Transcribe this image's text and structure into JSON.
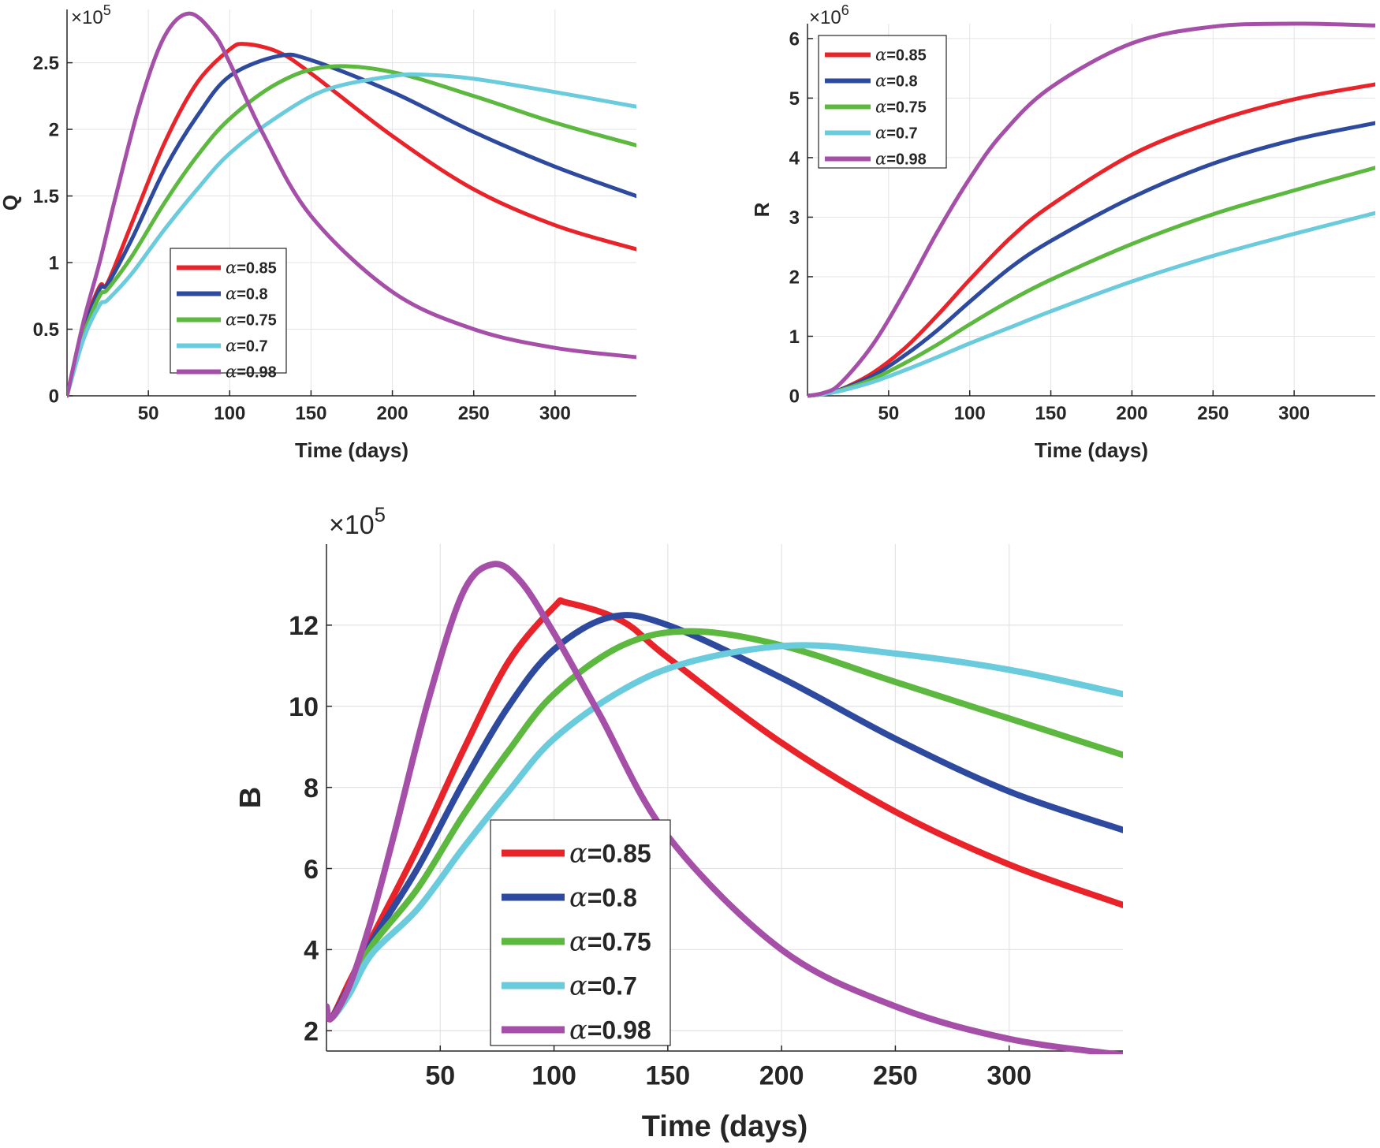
{
  "chart_data": [
    {
      "type": "line",
      "panel": "top-left",
      "title": "",
      "xlabel": "Time (days)",
      "ylabel": "Q",
      "y_exponent_label": "×10",
      "y_exponent_power": "5",
      "xlim": [
        0,
        350
      ],
      "ylim": [
        0,
        2.9
      ],
      "xticks": [
        50,
        100,
        150,
        200,
        250,
        300
      ],
      "xtick_labels": [
        "50",
        "100",
        "150",
        "200",
        "250",
        "300"
      ],
      "yticks": [
        0,
        0.5,
        1,
        1.5,
        2,
        2.5
      ],
      "ytick_labels": [
        "0",
        "0.5",
        "1",
        "1.5",
        "2",
        "2.5"
      ],
      "grid": true,
      "legend_position": "lower-left-center",
      "series": [
        {
          "name": "α=0.85",
          "alpha_value": "=0.85",
          "color": "#e8242a",
          "x": [
            0,
            10,
            20,
            25,
            40,
            60,
            80,
            100,
            110,
            130,
            150,
            200,
            250,
            300,
            350
          ],
          "y": [
            0,
            0.5,
            0.82,
            0.85,
            1.3,
            1.9,
            2.35,
            2.6,
            2.64,
            2.58,
            2.42,
            1.95,
            1.55,
            1.28,
            1.1
          ]
        },
        {
          "name": "α=0.8",
          "alpha_value": "=0.8",
          "color": "#2e4a9e",
          "x": [
            0,
            10,
            20,
            25,
            40,
            60,
            80,
            100,
            130,
            150,
            200,
            250,
            300,
            350
          ],
          "y": [
            0,
            0.48,
            0.8,
            0.84,
            1.18,
            1.7,
            2.1,
            2.4,
            2.55,
            2.52,
            2.28,
            1.98,
            1.72,
            1.5
          ]
        },
        {
          "name": "α=0.75",
          "alpha_value": "=0.75",
          "color": "#5cb83e",
          "x": [
            0,
            10,
            20,
            25,
            40,
            60,
            80,
            100,
            130,
            160,
            200,
            250,
            300,
            350
          ],
          "y": [
            0,
            0.45,
            0.75,
            0.8,
            1.05,
            1.45,
            1.8,
            2.08,
            2.35,
            2.47,
            2.43,
            2.25,
            2.05,
            1.88
          ]
        },
        {
          "name": "α=0.7",
          "alpha_value": "=0.7",
          "color": "#6acbdc",
          "x": [
            0,
            10,
            20,
            25,
            40,
            60,
            80,
            100,
            130,
            160,
            200,
            220,
            250,
            300,
            350
          ],
          "y": [
            0,
            0.42,
            0.68,
            0.72,
            0.92,
            1.25,
            1.55,
            1.82,
            2.1,
            2.3,
            2.4,
            2.41,
            2.38,
            2.28,
            2.17
          ]
        },
        {
          "name": "α=0.98",
          "alpha_value": "=0.98",
          "color": "#a64fa8",
          "x": [
            0,
            10,
            20,
            30,
            45,
            60,
            75,
            90,
            100,
            120,
            150,
            200,
            250,
            300,
            350
          ],
          "y": [
            0,
            0.55,
            1.0,
            1.5,
            2.2,
            2.7,
            2.87,
            2.72,
            2.5,
            1.98,
            1.35,
            0.78,
            0.5,
            0.36,
            0.29
          ]
        }
      ]
    },
    {
      "type": "line",
      "panel": "top-right",
      "title": "",
      "xlabel": "Time (days)",
      "ylabel": "R",
      "y_exponent_label": "×10",
      "y_exponent_power": "6",
      "xlim": [
        0,
        350
      ],
      "ylim": [
        0,
        6.25
      ],
      "xticks": [
        50,
        100,
        150,
        200,
        250,
        300
      ],
      "xtick_labels": [
        "50",
        "100",
        "150",
        "200",
        "250",
        "300"
      ],
      "yticks": [
        0,
        1,
        2,
        3,
        4,
        5,
        6
      ],
      "ytick_labels": [
        "0",
        "1",
        "2",
        "3",
        "4",
        "5",
        "6"
      ],
      "grid": true,
      "legend_position": "top-left",
      "series": [
        {
          "name": "α=0.85",
          "alpha_value": "=0.85",
          "color": "#e8242a",
          "x": [
            0,
            10,
            20,
            40,
            60,
            80,
            100,
            125,
            150,
            200,
            250,
            300,
            350
          ],
          "y": [
            0,
            0.03,
            0.1,
            0.38,
            0.8,
            1.35,
            1.95,
            2.65,
            3.2,
            4.05,
            4.6,
            4.98,
            5.23
          ]
        },
        {
          "name": "α=0.8",
          "alpha_value": "=0.8",
          "color": "#2e4a9e",
          "x": [
            0,
            10,
            20,
            40,
            60,
            80,
            100,
            125,
            150,
            200,
            250,
            300,
            350
          ],
          "y": [
            0,
            0.03,
            0.1,
            0.33,
            0.68,
            1.1,
            1.58,
            2.15,
            2.6,
            3.33,
            3.9,
            4.3,
            4.58
          ]
        },
        {
          "name": "α=0.75",
          "alpha_value": "=0.75",
          "color": "#5cb83e",
          "x": [
            0,
            10,
            20,
            40,
            60,
            80,
            100,
            125,
            150,
            200,
            250,
            300,
            350
          ],
          "y": [
            0,
            0.03,
            0.09,
            0.28,
            0.55,
            0.86,
            1.2,
            1.6,
            1.95,
            2.55,
            3.05,
            3.45,
            3.83
          ]
        },
        {
          "name": "α=0.7",
          "alpha_value": "=0.7",
          "color": "#6acbdc",
          "x": [
            0,
            10,
            20,
            40,
            60,
            80,
            100,
            125,
            150,
            200,
            250,
            300,
            350
          ],
          "y": [
            0,
            0.03,
            0.08,
            0.23,
            0.43,
            0.65,
            0.88,
            1.15,
            1.42,
            1.92,
            2.35,
            2.72,
            3.07
          ]
        },
        {
          "name": "α=0.98",
          "alpha_value": "=0.98",
          "color": "#a64fa8",
          "x": [
            0,
            10,
            20,
            40,
            60,
            80,
            100,
            120,
            150,
            200,
            250,
            300,
            350
          ],
          "y": [
            0,
            0.05,
            0.2,
            0.85,
            1.75,
            2.75,
            3.65,
            4.4,
            5.18,
            5.92,
            6.2,
            6.25,
            6.22
          ]
        }
      ]
    },
    {
      "type": "line",
      "panel": "bottom",
      "title": "",
      "xlabel": "Time (days)",
      "ylabel": "B",
      "y_exponent_label": "×10",
      "y_exponent_power": "5",
      "xlim": [
        0,
        350
      ],
      "ylim": [
        1.5,
        14
      ],
      "xticks": [
        50,
        100,
        150,
        200,
        250,
        300
      ],
      "xtick_labels": [
        "50",
        "100",
        "150",
        "200",
        "250",
        "300"
      ],
      "yticks": [
        2,
        4,
        6,
        8,
        10,
        12
      ],
      "ytick_labels": [
        "2",
        "4",
        "6",
        "8",
        "10",
        "12"
      ],
      "grid": true,
      "legend_position": "lower-center",
      "series": [
        {
          "name": "α=0.85",
          "alpha_value": "=0.85",
          "color": "#e8242a",
          "x": [
            0,
            2,
            10,
            20,
            40,
            60,
            80,
            100,
            106,
            130,
            150,
            200,
            250,
            300,
            350
          ],
          "y": [
            2.6,
            2.3,
            3.2,
            4.3,
            6.5,
            8.9,
            11.1,
            12.45,
            12.55,
            12.1,
            11.2,
            9.1,
            7.4,
            6.1,
            5.1
          ]
        },
        {
          "name": "α=0.8",
          "alpha_value": "=0.8",
          "color": "#2e4a9e",
          "x": [
            0,
            2,
            10,
            20,
            40,
            60,
            80,
            100,
            125,
            150,
            200,
            250,
            300,
            350
          ],
          "y": [
            2.6,
            2.3,
            3.1,
            4.2,
            6.0,
            8.1,
            10.0,
            11.4,
            12.2,
            12.0,
            10.7,
            9.2,
            7.9,
            6.95
          ]
        },
        {
          "name": "α=0.75",
          "alpha_value": "=0.75",
          "color": "#5cb83e",
          "x": [
            0,
            2,
            10,
            20,
            40,
            60,
            80,
            100,
            130,
            160,
            200,
            250,
            300,
            350
          ],
          "y": [
            2.6,
            2.3,
            3.0,
            4.1,
            5.5,
            7.3,
            8.9,
            10.3,
            11.5,
            11.85,
            11.5,
            10.6,
            9.7,
            8.8
          ]
        },
        {
          "name": "α=0.7",
          "alpha_value": "=0.7",
          "color": "#6acbdc",
          "x": [
            0,
            2,
            10,
            20,
            40,
            60,
            80,
            100,
            130,
            160,
            205,
            250,
            300,
            350
          ],
          "y": [
            2.6,
            2.3,
            2.9,
            3.9,
            5.0,
            6.5,
            7.9,
            9.2,
            10.4,
            11.1,
            11.5,
            11.3,
            10.9,
            10.3
          ]
        },
        {
          "name": "α=0.98",
          "alpha_value": "=0.98",
          "color": "#a64fa8",
          "x": [
            0,
            2,
            10,
            20,
            30,
            45,
            60,
            73,
            85,
            100,
            120,
            150,
            200,
            250,
            300,
            350
          ],
          "y": [
            2.6,
            2.3,
            3.1,
            4.8,
            6.9,
            10.2,
            12.8,
            13.5,
            13.1,
            11.8,
            9.8,
            6.8,
            4.0,
            2.6,
            1.8,
            1.4
          ]
        }
      ]
    }
  ]
}
